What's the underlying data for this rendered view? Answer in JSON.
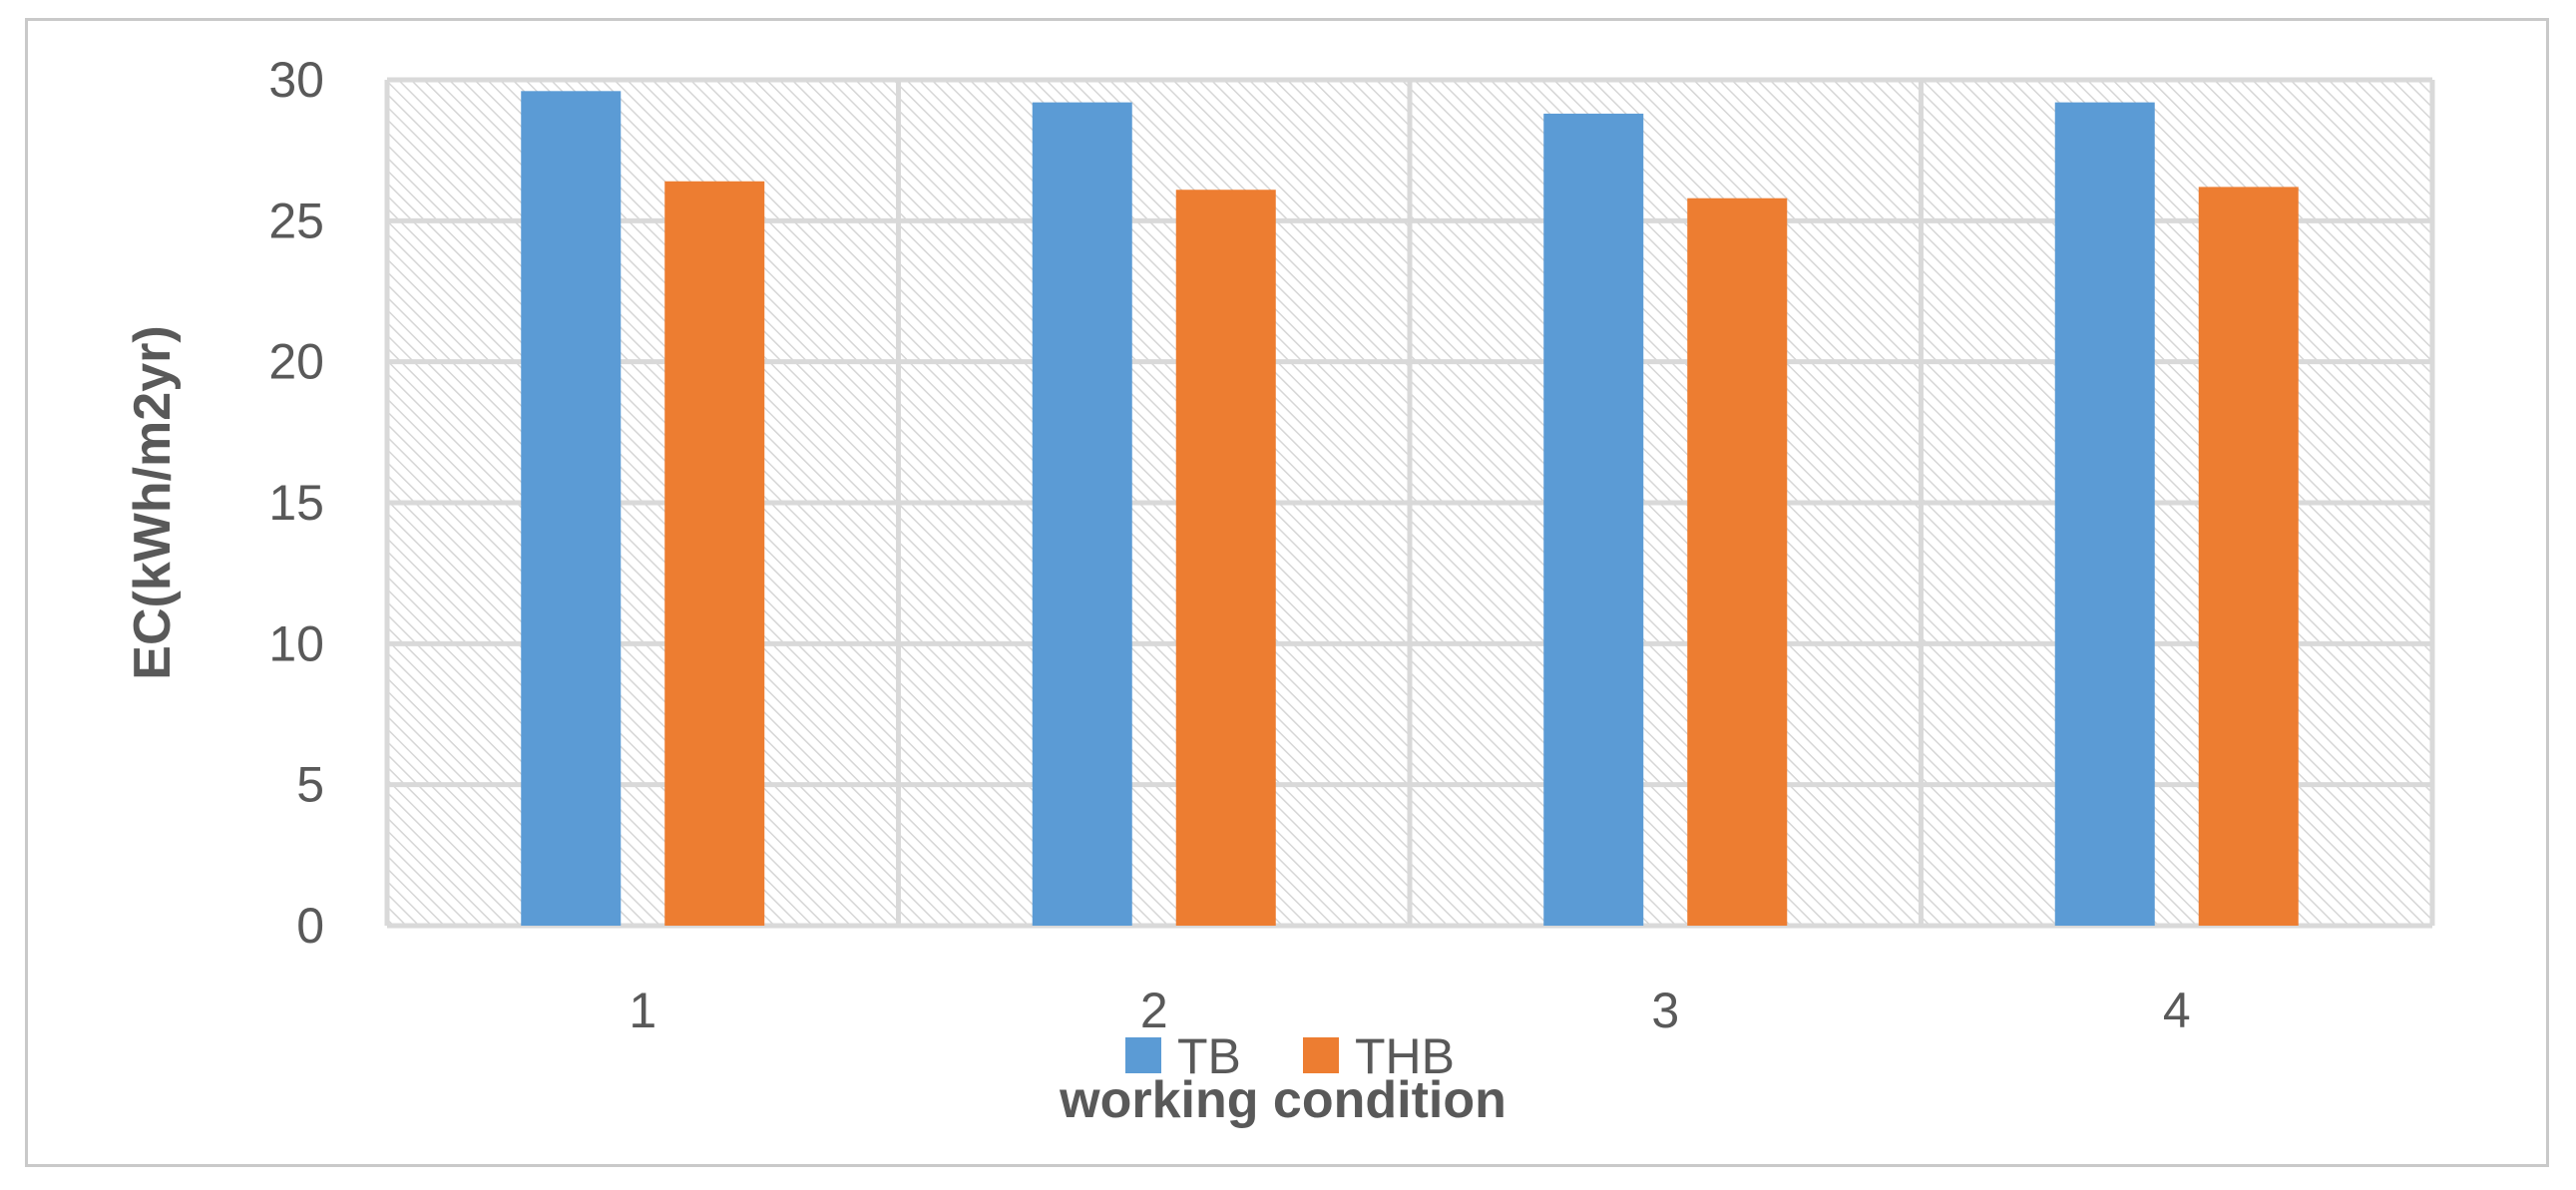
{
  "chart_data": {
    "type": "bar",
    "title": "",
    "xlabel": "working condition",
    "ylabel": "EC(kWh/m2yr)",
    "categories": [
      "1",
      "2",
      "3",
      "4"
    ],
    "series": [
      {
        "name": "TB",
        "values": [
          29.6,
          29.2,
          28.8,
          29.2
        ],
        "color": "#5b9bd5"
      },
      {
        "name": "THB",
        "values": [
          26.4,
          26.1,
          25.8,
          26.2
        ],
        "color": "#ed7d31"
      }
    ],
    "ylim": [
      0,
      30
    ],
    "yticks": [
      "0",
      "5",
      "10",
      "15",
      "20",
      "25",
      "30"
    ],
    "grid": true,
    "plot_background": "hatched light gray",
    "legend_position": "bottom"
  }
}
